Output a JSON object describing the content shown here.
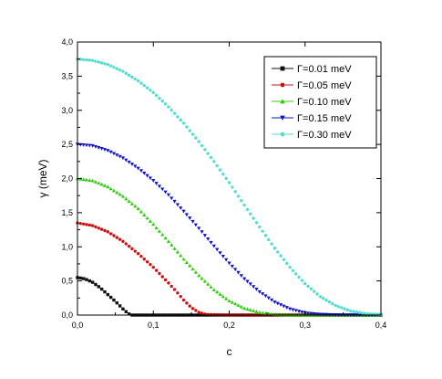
{
  "chart_data": {
    "type": "scatter",
    "xlabel": "c",
    "ylabel": "γ (meV)",
    "xlim": [
      0.0,
      0.4
    ],
    "ylim": [
      0.0,
      4.0
    ],
    "xticks": [
      "0,0",
      "0,1",
      "0,2",
      "0,3",
      "0,4"
    ],
    "yticks": [
      "0,0",
      "0,5",
      "1,0",
      "1,5",
      "2,0",
      "2,5",
      "3,0",
      "3,5",
      "4,0"
    ],
    "grid": false,
    "legend_position": "top-right",
    "series": [
      {
        "name": "Γ=0.01 meV",
        "color": "#111111",
        "marker": "square",
        "x": [
          0.0,
          0.01,
          0.02,
          0.03,
          0.04,
          0.05,
          0.06,
          0.065,
          0.07,
          0.08,
          0.1,
          0.15,
          0.2,
          0.25,
          0.3,
          0.35,
          0.4
        ],
        "y": [
          0.55,
          0.53,
          0.48,
          0.4,
          0.3,
          0.2,
          0.09,
          0.04,
          0.0,
          0.0,
          0.0,
          0.0,
          0.0,
          0.0,
          0.0,
          0.0,
          0.0
        ]
      },
      {
        "name": "Γ=0.05 meV",
        "color": "#cc1111",
        "marker": "circle",
        "x": [
          0.0,
          0.02,
          0.04,
          0.06,
          0.08,
          0.1,
          0.12,
          0.13,
          0.14,
          0.15,
          0.16,
          0.17,
          0.2,
          0.25,
          0.3,
          0.35,
          0.4
        ],
        "y": [
          1.35,
          1.31,
          1.22,
          1.08,
          0.9,
          0.7,
          0.47,
          0.35,
          0.22,
          0.11,
          0.04,
          0.01,
          0.0,
          0.0,
          0.0,
          0.0,
          0.0
        ]
      },
      {
        "name": "Γ=0.10 meV",
        "color": "#33cc11",
        "marker": "triangle-up",
        "x": [
          0.0,
          0.02,
          0.04,
          0.06,
          0.08,
          0.1,
          0.12,
          0.14,
          0.16,
          0.18,
          0.2,
          0.22,
          0.24,
          0.26,
          0.28,
          0.3,
          0.35,
          0.4
        ],
        "y": [
          2.0,
          1.97,
          1.88,
          1.74,
          1.56,
          1.33,
          1.08,
          0.82,
          0.58,
          0.37,
          0.21,
          0.1,
          0.04,
          0.01,
          0.0,
          0.0,
          0.0,
          0.0
        ]
      },
      {
        "name": "Γ=0.15 meV",
        "color": "#1111cc",
        "marker": "triangle-down",
        "x": [
          0.0,
          0.02,
          0.04,
          0.06,
          0.08,
          0.1,
          0.12,
          0.14,
          0.16,
          0.18,
          0.2,
          0.22,
          0.24,
          0.26,
          0.28,
          0.3,
          0.32,
          0.35,
          0.4
        ],
        "y": [
          2.5,
          2.48,
          2.41,
          2.3,
          2.15,
          1.97,
          1.76,
          1.52,
          1.27,
          1.01,
          0.76,
          0.53,
          0.34,
          0.19,
          0.09,
          0.03,
          0.01,
          0.0,
          0.0
        ]
      },
      {
        "name": "Γ=0.30 meV",
        "color": "#55ddd0",
        "marker": "circle",
        "x": [
          0.0,
          0.02,
          0.04,
          0.06,
          0.08,
          0.1,
          0.12,
          0.14,
          0.16,
          0.18,
          0.2,
          0.22,
          0.24,
          0.26,
          0.28,
          0.3,
          0.32,
          0.34,
          0.36,
          0.38,
          0.4
        ],
        "y": [
          3.75,
          3.73,
          3.67,
          3.57,
          3.43,
          3.26,
          3.05,
          2.81,
          2.54,
          2.25,
          1.94,
          1.61,
          1.29,
          0.98,
          0.7,
          0.46,
          0.27,
          0.14,
          0.06,
          0.02,
          0.01
        ]
      }
    ]
  }
}
